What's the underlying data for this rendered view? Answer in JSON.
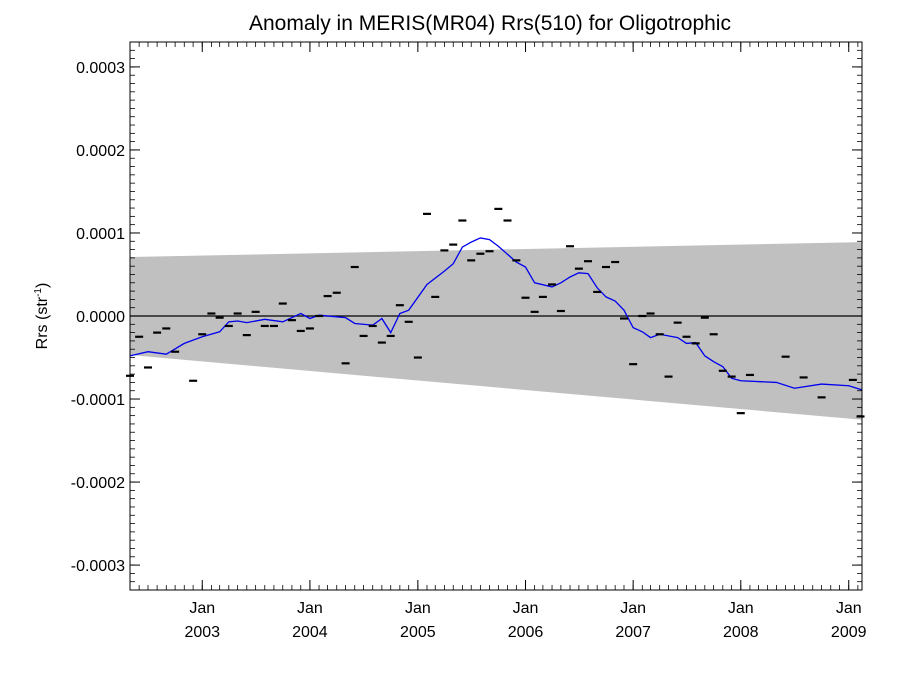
{
  "chart_data": {
    "type": "scatter",
    "title": "Anomaly in MERIS(MR04) Rrs(510) for Oligotrophic",
    "ylabel": "Rrs (str",
    "ylabel_sup": "-1",
    "ylabel_end": ")",
    "xlabel": "",
    "xlim": [
      "2002-05-01",
      "2009-02-15"
    ],
    "ylim": [
      -0.00033,
      0.00033
    ],
    "y_ticks": [
      -0.0003,
      -0.0002,
      -0.0001,
      0.0,
      0.0001,
      0.0002,
      0.0003
    ],
    "y_tick_labels": [
      "-0.0003",
      "-0.0002",
      "-0.0001",
      "0.0000",
      "0.0001",
      "0.0002",
      "0.0003"
    ],
    "x_ticks": [
      {
        "date": "2003-01-01",
        "month": "Jan",
        "year": "2003"
      },
      {
        "date": "2004-01-01",
        "month": "Jan",
        "year": "2004"
      },
      {
        "date": "2005-01-01",
        "month": "Jan",
        "year": "2005"
      },
      {
        "date": "2006-01-01",
        "month": "Jan",
        "year": "2006"
      },
      {
        "date": "2007-01-01",
        "month": "Jan",
        "year": "2007"
      },
      {
        "date": "2008-01-01",
        "month": "Jan",
        "year": "2008"
      },
      {
        "date": "2009-01-01",
        "month": "Jan",
        "year": "2009"
      }
    ],
    "confidence_band": {
      "color": "#c0c0c0",
      "upper": [
        [
          "2002-05-01",
          7.1e-05
        ],
        [
          "2009-02-15",
          8.9e-05
        ]
      ],
      "lower": [
        [
          "2002-05-01",
          -4.7e-05
        ],
        [
          "2009-02-15",
          -0.000125
        ]
      ]
    },
    "zero_line": {
      "value": 0.0,
      "color": "#000000"
    },
    "series": [
      {
        "kind": "monthly-anomaly",
        "marker": "dash",
        "color": "#000000",
        "points": [
          [
            "2002-05-01",
            -7.2e-05
          ],
          [
            "2002-06-01",
            -2.5e-05
          ],
          [
            "2002-07-01",
            -6.2e-05
          ],
          [
            "2002-08-01",
            -2e-05
          ],
          [
            "2002-09-01",
            -1.5e-05
          ],
          [
            "2002-10-01",
            -4.3e-05
          ],
          [
            "2002-12-01",
            -7.8e-05
          ],
          [
            "2003-01-01",
            -2.2e-05
          ],
          [
            "2003-02-01",
            3e-06
          ],
          [
            "2003-03-01",
            -2e-06
          ],
          [
            "2003-04-01",
            -1.2e-05
          ],
          [
            "2003-05-01",
            3e-06
          ],
          [
            "2003-06-01",
            -2.3e-05
          ],
          [
            "2003-07-01",
            5e-06
          ],
          [
            "2003-08-01",
            -1.2e-05
          ],
          [
            "2003-09-01",
            -1.2e-05
          ],
          [
            "2003-10-01",
            1.5e-05
          ],
          [
            "2003-11-01",
            -5e-06
          ],
          [
            "2003-12-01",
            -1.8e-05
          ],
          [
            "2004-01-01",
            -1.5e-05
          ],
          [
            "2004-02-01",
            0.0
          ],
          [
            "2004-03-01",
            2.4e-05
          ],
          [
            "2004-04-01",
            2.8e-05
          ],
          [
            "2004-05-01",
            -5.7e-05
          ],
          [
            "2004-06-01",
            5.9e-05
          ],
          [
            "2004-07-01",
            -2.4e-05
          ],
          [
            "2004-08-01",
            -1.2e-05
          ],
          [
            "2004-09-01",
            -3.2e-05
          ],
          [
            "2004-10-01",
            -2.4e-05
          ],
          [
            "2004-11-01",
            1.3e-05
          ],
          [
            "2004-12-01",
            -7e-06
          ],
          [
            "2005-01-01",
            -5e-05
          ],
          [
            "2005-02-01",
            0.000123
          ],
          [
            "2005-03-01",
            2.3e-05
          ],
          [
            "2005-04-01",
            7.9e-05
          ],
          [
            "2005-05-01",
            8.6e-05
          ],
          [
            "2005-06-01",
            0.000115
          ],
          [
            "2005-07-01",
            6.7e-05
          ],
          [
            "2005-08-01",
            7.5e-05
          ],
          [
            "2005-09-01",
            7.8e-05
          ],
          [
            "2005-10-01",
            0.000129
          ],
          [
            "2005-11-01",
            0.000115
          ],
          [
            "2005-12-01",
            6.7e-05
          ],
          [
            "2006-01-01",
            2.2e-05
          ],
          [
            "2006-02-01",
            5e-06
          ],
          [
            "2006-03-01",
            2.3e-05
          ],
          [
            "2006-04-01",
            3.8e-05
          ],
          [
            "2006-05-01",
            6e-06
          ],
          [
            "2006-06-01",
            8.4e-05
          ],
          [
            "2006-07-01",
            5.7e-05
          ],
          [
            "2006-08-01",
            6.6e-05
          ],
          [
            "2006-09-01",
            2.9e-05
          ],
          [
            "2006-10-01",
            5.9e-05
          ],
          [
            "2006-11-01",
            6.5e-05
          ],
          [
            "2006-12-01",
            -3e-06
          ],
          [
            "2007-01-01",
            -5.8e-05
          ],
          [
            "2007-02-01",
            0.0
          ],
          [
            "2007-03-01",
            3e-06
          ],
          [
            "2007-04-01",
            -2.2e-05
          ],
          [
            "2007-05-01",
            -7.3e-05
          ],
          [
            "2007-06-01",
            -8e-06
          ],
          [
            "2007-07-01",
            -2.5e-05
          ],
          [
            "2007-08-01",
            -3.3e-05
          ],
          [
            "2007-09-01",
            -2e-06
          ],
          [
            "2007-10-01",
            -2.2e-05
          ],
          [
            "2007-11-01",
            -6.6e-05
          ],
          [
            "2007-12-01",
            -7.3e-05
          ],
          [
            "2008-01-01",
            -0.000117
          ],
          [
            "2008-02-01",
            -7.1e-05
          ],
          [
            "2008-06-01",
            -4.9e-05
          ],
          [
            "2008-08-01",
            -7.4e-05
          ],
          [
            "2008-10-01",
            -9.8e-05
          ],
          [
            "2009-01-15",
            -7.7e-05
          ],
          [
            "2009-02-10",
            -0.000121
          ]
        ]
      },
      {
        "kind": "running-mean",
        "marker": "line",
        "color": "#0000ee",
        "points": [
          [
            "2002-05-01",
            -4.8e-05
          ],
          [
            "2002-07-01",
            -4.3e-05
          ],
          [
            "2002-09-01",
            -4.6e-05
          ],
          [
            "2002-11-01",
            -3.3e-05
          ],
          [
            "2003-01-01",
            -2.5e-05
          ],
          [
            "2003-03-01",
            -1.9e-05
          ],
          [
            "2003-04-01",
            -7e-06
          ],
          [
            "2003-05-01",
            -6e-06
          ],
          [
            "2003-06-01",
            -8e-06
          ],
          [
            "2003-08-01",
            -4e-06
          ],
          [
            "2003-10-01",
            -7e-06
          ],
          [
            "2003-12-01",
            3e-06
          ],
          [
            "2004-01-01",
            -3e-06
          ],
          [
            "2004-02-01",
            1e-06
          ],
          [
            "2004-04-01",
            -1e-06
          ],
          [
            "2004-05-01",
            -2e-06
          ],
          [
            "2004-06-01",
            -9e-06
          ],
          [
            "2004-08-01",
            -1.1e-05
          ],
          [
            "2004-09-01",
            -3e-06
          ],
          [
            "2004-10-01",
            -2e-05
          ],
          [
            "2004-11-01",
            3e-06
          ],
          [
            "2004-12-01",
            7e-06
          ],
          [
            "2005-02-01",
            3.8e-05
          ],
          [
            "2005-04-01",
            5.4e-05
          ],
          [
            "2005-05-01",
            6.3e-05
          ],
          [
            "2005-06-01",
            8.3e-05
          ],
          [
            "2005-07-01",
            8.9e-05
          ],
          [
            "2005-08-01",
            9.4e-05
          ],
          [
            "2005-09-01",
            9.2e-05
          ],
          [
            "2005-10-01",
            8.4e-05
          ],
          [
            "2005-12-01",
            6.5e-05
          ],
          [
            "2006-01-01",
            5.9e-05
          ],
          [
            "2006-02-01",
            4e-05
          ],
          [
            "2006-04-01",
            3.5e-05
          ],
          [
            "2006-05-01",
            4e-05
          ],
          [
            "2006-06-01",
            4.7e-05
          ],
          [
            "2006-07-01",
            5.2e-05
          ],
          [
            "2006-08-01",
            5.1e-05
          ],
          [
            "2006-09-01",
            3.4e-05
          ],
          [
            "2006-10-01",
            2.3e-05
          ],
          [
            "2006-11-01",
            1.8e-05
          ],
          [
            "2006-12-01",
            7e-06
          ],
          [
            "2007-01-01",
            -1.4e-05
          ],
          [
            "2007-02-01",
            -1.9e-05
          ],
          [
            "2007-03-01",
            -2.6e-05
          ],
          [
            "2007-04-01",
            -2.2e-05
          ],
          [
            "2007-06-01",
            -2.6e-05
          ],
          [
            "2007-07-01",
            -3.3e-05
          ],
          [
            "2007-08-01",
            -3.2e-05
          ],
          [
            "2007-09-01",
            -4.8e-05
          ],
          [
            "2007-10-01",
            -5.5e-05
          ],
          [
            "2007-11-01",
            -6.1e-05
          ],
          [
            "2007-12-01",
            -7.5e-05
          ],
          [
            "2008-01-01",
            -7.8e-05
          ],
          [
            "2008-05-01",
            -8e-05
          ],
          [
            "2008-07-01",
            -8.7e-05
          ],
          [
            "2008-10-01",
            -8.2e-05
          ],
          [
            "2009-01-01",
            -8.4e-05
          ],
          [
            "2009-02-15",
            -8.9e-05
          ]
        ]
      }
    ],
    "grid": false
  }
}
